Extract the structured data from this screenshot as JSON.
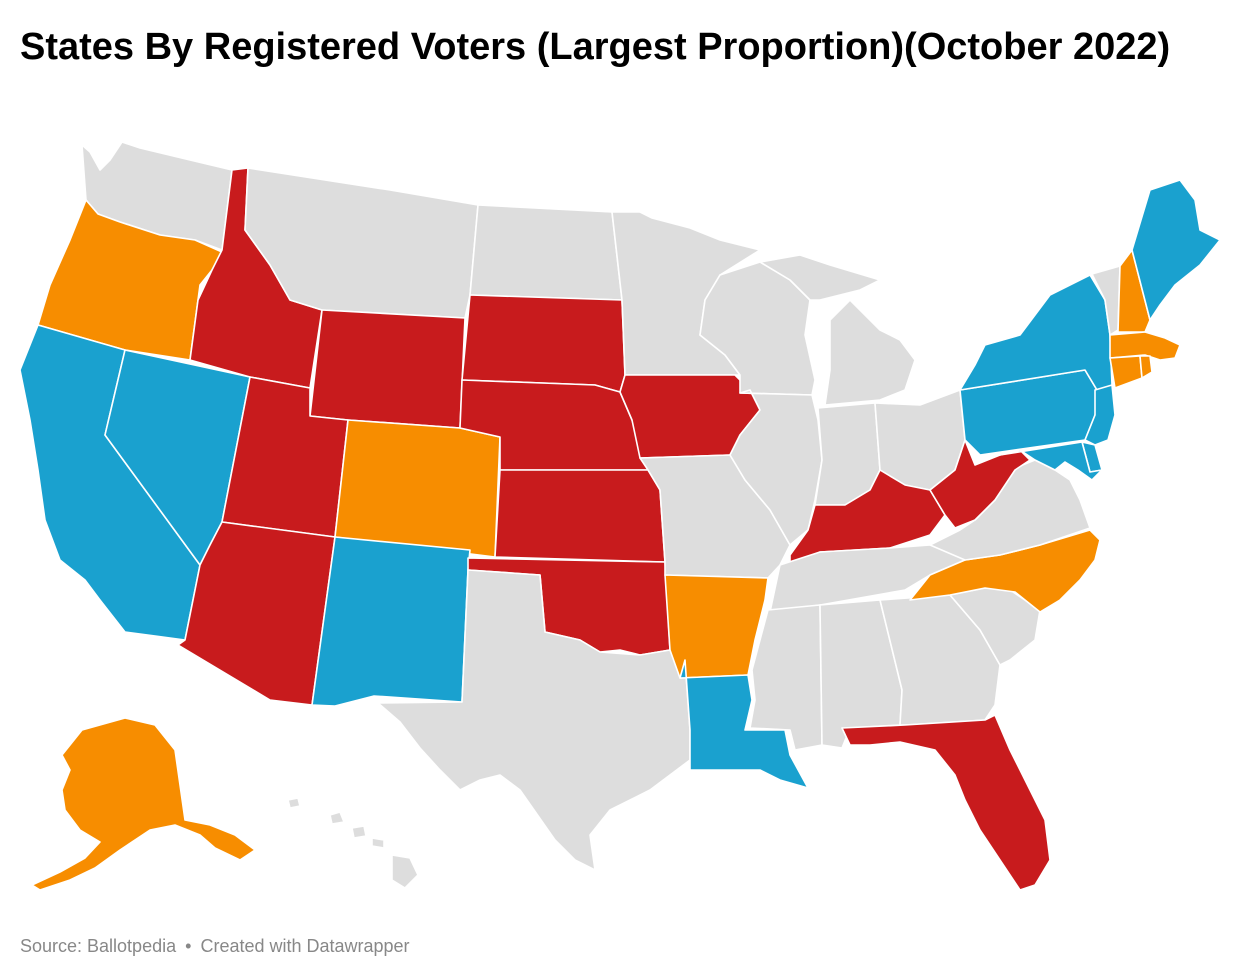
{
  "title": "States By Registered Voters (Largest Proportion)(October 2022)",
  "footer": {
    "source": "Source: Ballotpedia",
    "separator": "•",
    "credit": "Created with Datawrapper"
  },
  "palette": {
    "republican": "#c81b1d",
    "democratic": "#1aa1cf",
    "independent": "#f78d00",
    "no_data": "#dddddd"
  },
  "states": {
    "WA": "no_data",
    "OR": "independent",
    "CA": "democratic",
    "NV": "democratic",
    "ID": "republican",
    "MT": "no_data",
    "WY": "republican",
    "UT": "republican",
    "AZ": "republican",
    "CO": "independent",
    "NM": "democratic",
    "ND": "no_data",
    "SD": "republican",
    "NE": "republican",
    "KS": "republican",
    "OK": "republican",
    "TX": "no_data",
    "MN": "no_data",
    "IA": "republican",
    "MO": "no_data",
    "AR": "independent",
    "LA": "democratic",
    "WI": "no_data",
    "IL": "no_data",
    "MI": "no_data",
    "IN": "no_data",
    "OH": "no_data",
    "KY": "republican",
    "TN": "no_data",
    "MS": "no_data",
    "AL": "no_data",
    "GA": "no_data",
    "FL": "republican",
    "SC": "no_data",
    "NC": "independent",
    "VA": "no_data",
    "WV": "republican",
    "PA": "democratic",
    "NY": "democratic",
    "VT": "no_data",
    "NH": "independent",
    "ME": "democratic",
    "MA": "independent",
    "RI": "independent",
    "CT": "independent",
    "NJ": "democratic",
    "DE": "democratic",
    "MD": "democratic",
    "AK": "independent",
    "HI": "no_data"
  }
}
